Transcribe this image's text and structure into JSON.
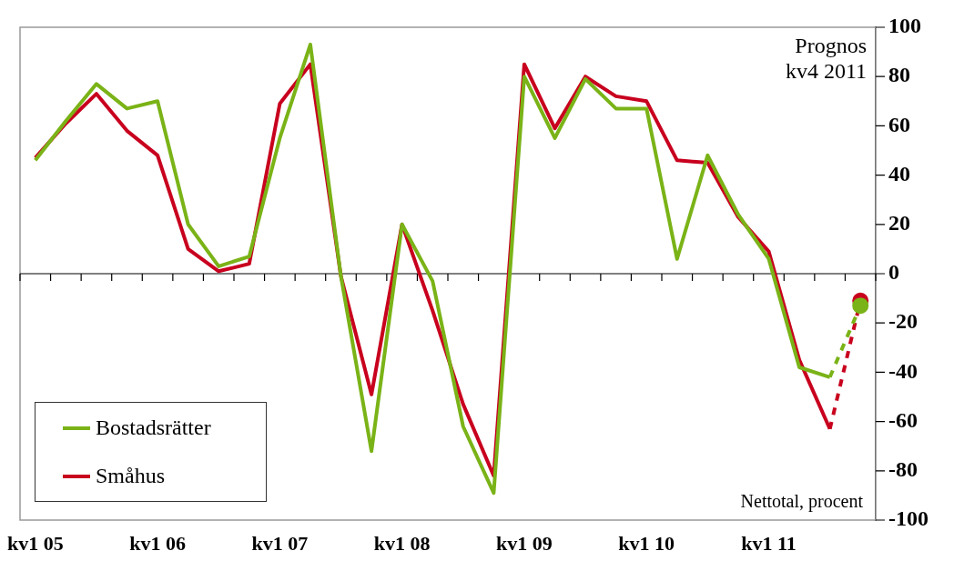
{
  "chart_data": {
    "type": "line",
    "categories": [
      "kv1 05",
      null,
      null,
      null,
      "kv1 06",
      null,
      null,
      null,
      "kv1 07",
      null,
      null,
      null,
      "kv1 08",
      null,
      null,
      null,
      "kv1 09",
      null,
      null,
      null,
      "kv1 10",
      null,
      null,
      null,
      "kv1 11",
      null,
      null,
      null
    ],
    "series": [
      {
        "name": "Bostadsrätter",
        "color": "#7ab317",
        "line_style": "solid",
        "marker": "none",
        "values": [
          46,
          62,
          77,
          67,
          70,
          20,
          3,
          7,
          55,
          93,
          -1,
          -72,
          20,
          -3,
          -62,
          -89,
          80,
          55,
          79,
          67,
          67,
          6,
          48,
          24,
          6,
          -38,
          -42,
          null
        ]
      },
      {
        "name": "Småhus",
        "color": "#c8001e",
        "line_style": "solid",
        "marker": "none",
        "values": [
          47,
          61,
          73,
          58,
          48,
          10,
          1,
          4,
          69,
          85,
          -1,
          -49,
          20,
          -15,
          -53,
          -82,
          85,
          59,
          80,
          72,
          70,
          46,
          45,
          23,
          9,
          -35,
          -63,
          null
        ]
      },
      {
        "color": "#7ab317",
        "line_style": "dashed",
        "marker": "circle",
        "values": [
          null,
          null,
          null,
          null,
          null,
          null,
          null,
          null,
          null,
          null,
          null,
          null,
          null,
          null,
          null,
          null,
          null,
          null,
          null,
          null,
          null,
          null,
          null,
          null,
          null,
          null,
          -42,
          -13
        ]
      },
      {
        "color": "#c8001e",
        "line_style": "dashed",
        "marker": "circle",
        "values": [
          null,
          null,
          null,
          null,
          null,
          null,
          null,
          null,
          null,
          null,
          null,
          null,
          null,
          null,
          null,
          null,
          null,
          null,
          null,
          null,
          null,
          null,
          null,
          null,
          null,
          null,
          -63,
          -11
        ]
      }
    ],
    "ylim": [
      -100,
      100
    ],
    "yticks": [
      -100,
      -80,
      -60,
      -40,
      -20,
      0,
      20,
      40,
      60,
      80,
      100
    ],
    "legend": "bottom left",
    "annotations": [
      "Prognos\nkv4 2011",
      "Nettotal, procent"
    ]
  }
}
